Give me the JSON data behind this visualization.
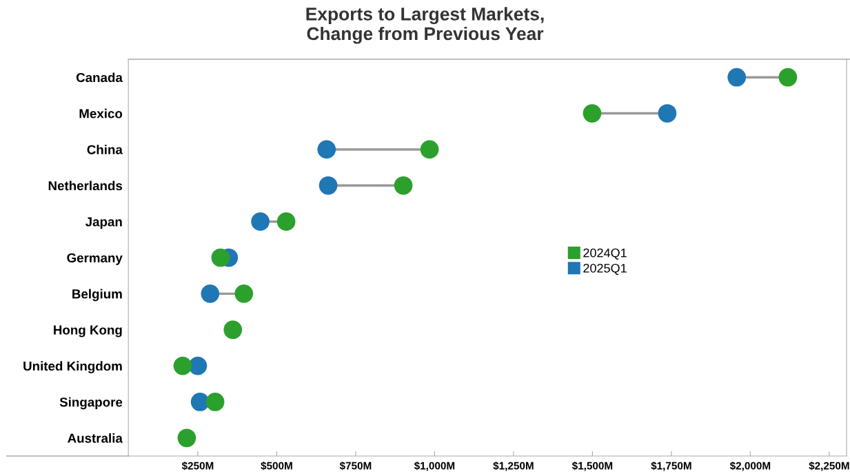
{
  "chart_data": {
    "type": "scatter",
    "orientation": "horizontal",
    "title": "Exports to Largest Markets,\nChange from Previous Year",
    "categories": [
      "Canada",
      "Mexico",
      "China",
      "Netherlands",
      "Japan",
      "Germany",
      "Belgium",
      "Hong Kong",
      "United Kingdom",
      "Singapore",
      "Australia"
    ],
    "series": [
      {
        "name": "2025Q1",
        "color": "#1f77b4",
        "values": [
          1957,
          1737,
          658,
          663,
          448,
          348,
          289,
          null,
          250,
          257,
          null
        ]
      },
      {
        "name": "2024Q1",
        "color": "#2ca02c",
        "values": [
          2119,
          1499,
          984,
          901,
          530,
          322,
          396,
          361,
          202,
          305,
          215
        ]
      }
    ],
    "xlim": [
      30,
      2305
    ],
    "xticks": [
      {
        "value": 250,
        "label": "$250M"
      },
      {
        "value": 500,
        "label": "$500M"
      },
      {
        "value": 750,
        "label": "$750M"
      },
      {
        "value": 1000,
        "label": "$1,000M"
      },
      {
        "value": 1250,
        "label": "$1,250M"
      },
      {
        "value": 1500,
        "label": "$1,500M"
      },
      {
        "value": 1750,
        "label": "$1,750M"
      },
      {
        "value": 2000,
        "label": "$2,000M"
      },
      {
        "value": 2250,
        "label": "$2,250M"
      }
    ],
    "marker": "circle",
    "legend": "right",
    "grid": false
  }
}
